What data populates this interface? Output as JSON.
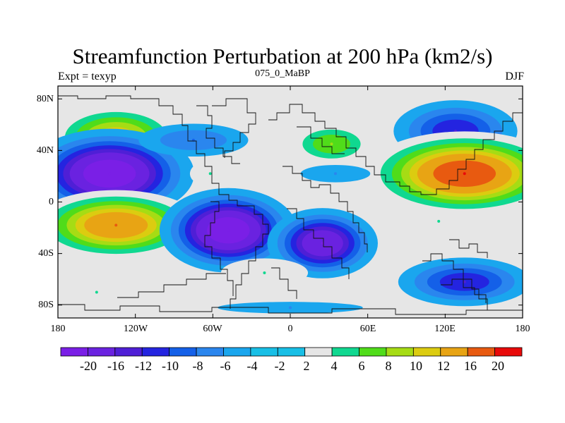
{
  "title": "Streamfunction Perturbation at 200 hPa (km2/s)",
  "left_subtitle": "Expt = texyp",
  "center_subtitle": "075_0_MaBP",
  "right_subtitle": "DJF",
  "y_axis": {
    "labels": [
      "80N",
      "40N",
      "0",
      "40S",
      "80S"
    ],
    "values": [
      80,
      40,
      0,
      -40,
      -80
    ],
    "range": [
      -90,
      90
    ]
  },
  "x_axis": {
    "labels": [
      "180",
      "120W",
      "60W",
      "0",
      "60E",
      "120E",
      "180"
    ],
    "values": [
      -180,
      -120,
      -60,
      0,
      60,
      120,
      180
    ],
    "range": [
      -180,
      180
    ]
  },
  "colorbar": {
    "labels": [
      "-20",
      "-16",
      "-12",
      "-10",
      "-8",
      "-6",
      "-4",
      "-2",
      "2",
      "4",
      "6",
      "8",
      "10",
      "12",
      "16",
      "20"
    ],
    "colors": [
      "#7a1fe6",
      "#6a22e0",
      "#4f1fd6",
      "#2424e0",
      "#1460e8",
      "#2a86ee",
      "#1aa6ee",
      "#18bfe6",
      "#e6e6e6",
      "#10d890",
      "#50dc1a",
      "#a6dc14",
      "#dccc10",
      "#e8a414",
      "#e85a10",
      "#e80a0a"
    ]
  },
  "colors": {
    "background": "#ffffff",
    "plot_fill": "#e6e6e6",
    "coast": "#111111"
  },
  "chart_data": {
    "type": "contour_map",
    "variable": "Streamfunction Perturbation at 200 hPa (km2/s)",
    "features": [
      {
        "lon": -135,
        "lat": 50,
        "value": 12
      },
      {
        "lon": -140,
        "lat": 22,
        "value": -20
      },
      {
        "lon": -135,
        "lat": -18,
        "value": 16
      },
      {
        "lon": -48,
        "lat": -22,
        "value": -20
      },
      {
        "lon": 25,
        "lat": -32,
        "value": -16
      },
      {
        "lon": 32,
        "lat": 45,
        "value": 8
      },
      {
        "lon": -75,
        "lat": 48,
        "value": -6
      },
      {
        "lon": 128,
        "lat": 55,
        "value": -10
      },
      {
        "lon": 135,
        "lat": 22,
        "value": 20
      },
      {
        "lon": 115,
        "lat": -15,
        "value": 4
      },
      {
        "lon": 135,
        "lat": -62,
        "value": -10
      },
      {
        "lon": -62,
        "lat": 22,
        "value": 4
      },
      {
        "lon": 35,
        "lat": 22,
        "value": -4
      },
      {
        "lon": 0,
        "lat": -82,
        "value": -4
      },
      {
        "lon": -150,
        "lat": -70,
        "value": 4
      },
      {
        "lon": -20,
        "lat": -55,
        "value": 4
      }
    ]
  }
}
